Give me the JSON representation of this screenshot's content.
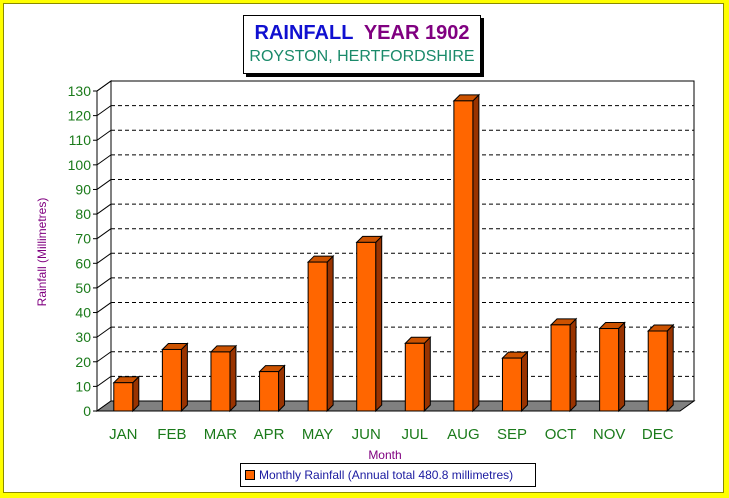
{
  "title": {
    "main": "RAINFALL",
    "year": "YEAR 1902",
    "subtitle": "ROYSTON, HERTFORDSHIRE"
  },
  "legend": {
    "label": "Monthly Rainfall (Annual total 480.8 millimetres)"
  },
  "colors": {
    "bar_front": "#ff6600",
    "bar_side": "#993300",
    "bar_top": "#cc5200",
    "floor": "#808080",
    "axis_text": "#1a7a1a",
    "axis_title": "#800080"
  },
  "chart_data": {
    "type": "bar",
    "title": "RAINFALL YEAR 1902",
    "subtitle": "ROYSTON, HERTFORDSHIRE",
    "xlabel": "Month",
    "ylabel": "Rainfall (Millimetres)",
    "categories": [
      "JAN",
      "FEB",
      "MAR",
      "APR",
      "MAY",
      "JUN",
      "JUL",
      "AUG",
      "SEP",
      "OCT",
      "NOV",
      "DEC"
    ],
    "series": [
      {
        "name": "Monthly Rainfall (Annual total 480.8 millimetres)",
        "values": [
          11.5,
          25.0,
          24.0,
          16.0,
          60.5,
          68.5,
          27.5,
          126.0,
          21.5,
          35.0,
          33.5,
          32.5
        ]
      }
    ],
    "ylim": [
      0,
      130
    ],
    "yticks": [
      0,
      10,
      20,
      30,
      40,
      50,
      60,
      70,
      80,
      90,
      100,
      110,
      120,
      130
    ],
    "grid": true,
    "legend_position": "bottom"
  }
}
